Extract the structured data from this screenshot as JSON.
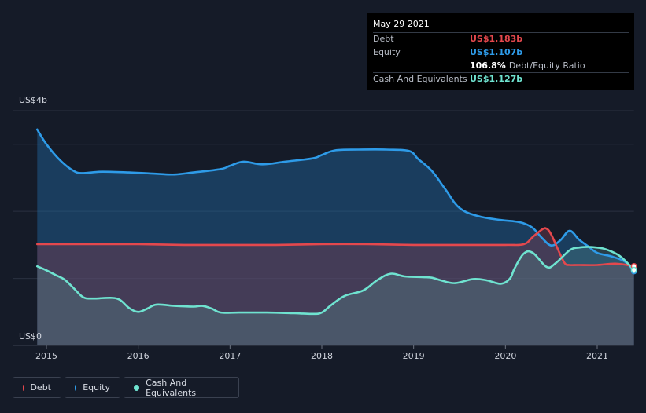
{
  "tooltip": {
    "date": "May 29 2021",
    "debt_label": "Debt",
    "debt_value": "US$1.183b",
    "equity_label": "Equity",
    "equity_value": "US$1.107b",
    "ratio_value": "106.8%",
    "ratio_label": "Debt/Equity Ratio",
    "cash_label": "Cash And Equivalents",
    "cash_value": "US$1.127b"
  },
  "legend": [
    {
      "label": "Debt",
      "color": "#e5484d"
    },
    {
      "label": "Equity",
      "color": "#2e9be8"
    },
    {
      "label": "Cash And Equivalents",
      "color": "#6fe3d0"
    }
  ],
  "chart_data": {
    "type": "area",
    "ylabel_top": "US$4b",
    "ylabel_bottom": "US$0",
    "ylim": [
      0,
      3.5
    ],
    "xlim": [
      2014.9,
      2021.4
    ],
    "x_ticks": [
      2015,
      2016,
      2017,
      2018,
      2019,
      2020,
      2021
    ],
    "x_tick_labels": [
      "2015",
      "2016",
      "2017",
      "2018",
      "2019",
      "2020",
      "2021"
    ],
    "y_gridlines": [
      1,
      2,
      3,
      3.5
    ],
    "series": [
      {
        "name": "Equity",
        "color": "#2e9be8",
        "x": [
          2014.9,
          2015.0,
          2015.15,
          2015.3,
          2015.4,
          2015.6,
          2015.9,
          2016.2,
          2016.4,
          2016.6,
          2016.9,
          2017.0,
          2017.15,
          2017.35,
          2017.6,
          2017.9,
          2018.0,
          2018.15,
          2018.4,
          2018.7,
          2018.95,
          2019.05,
          2019.2,
          2019.35,
          2019.5,
          2019.7,
          2019.95,
          2020.1,
          2020.2,
          2020.3,
          2020.4,
          2020.5,
          2020.6,
          2020.7,
          2020.8,
          2020.9,
          2021.0,
          2021.15,
          2021.3,
          2021.4
        ],
        "values": [
          3.22,
          3.0,
          2.76,
          2.6,
          2.57,
          2.59,
          2.58,
          2.56,
          2.55,
          2.58,
          2.63,
          2.68,
          2.74,
          2.7,
          2.74,
          2.79,
          2.84,
          2.91,
          2.92,
          2.92,
          2.9,
          2.78,
          2.6,
          2.32,
          2.05,
          1.93,
          1.87,
          1.85,
          1.82,
          1.75,
          1.6,
          1.49,
          1.57,
          1.71,
          1.58,
          1.48,
          1.38,
          1.33,
          1.25,
          1.107
        ]
      },
      {
        "name": "Debt",
        "color": "#e5484d",
        "x": [
          2014.9,
          2015.5,
          2016.0,
          2016.5,
          2017.0,
          2017.5,
          2018.0,
          2018.5,
          2019.0,
          2019.5,
          2020.0,
          2020.2,
          2020.3,
          2020.4,
          2020.45,
          2020.5,
          2020.6,
          2020.65,
          2020.7,
          2020.8,
          2021.0,
          2021.2,
          2021.4
        ],
        "values": [
          1.51,
          1.51,
          1.51,
          1.5,
          1.5,
          1.5,
          1.51,
          1.51,
          1.5,
          1.5,
          1.5,
          1.51,
          1.62,
          1.73,
          1.74,
          1.65,
          1.35,
          1.22,
          1.2,
          1.2,
          1.2,
          1.22,
          1.183
        ]
      },
      {
        "name": "Cash And Equivalents",
        "color": "#6fe3d0",
        "x": [
          2014.9,
          2015.0,
          2015.1,
          2015.2,
          2015.3,
          2015.4,
          2015.5,
          2015.7,
          2015.8,
          2015.9,
          2016.0,
          2016.1,
          2016.2,
          2016.4,
          2016.6,
          2016.7,
          2016.8,
          2016.9,
          2017.1,
          2017.4,
          2017.7,
          2017.9,
          2018.0,
          2018.1,
          2018.25,
          2018.45,
          2018.6,
          2018.75,
          2018.9,
          2019.1,
          2019.2,
          2019.3,
          2019.45,
          2019.65,
          2019.8,
          2019.95,
          2020.05,
          2020.1,
          2020.2,
          2020.3,
          2020.45,
          2020.55,
          2020.7,
          2020.8,
          2020.9,
          2021.0,
          2021.1,
          2021.25,
          2021.4
        ],
        "values": [
          1.18,
          1.12,
          1.05,
          0.98,
          0.85,
          0.72,
          0.7,
          0.71,
          0.68,
          0.56,
          0.5,
          0.55,
          0.61,
          0.59,
          0.58,
          0.59,
          0.55,
          0.49,
          0.49,
          0.49,
          0.48,
          0.47,
          0.49,
          0.6,
          0.74,
          0.82,
          0.97,
          1.07,
          1.03,
          1.02,
          1.01,
          0.97,
          0.93,
          0.99,
          0.97,
          0.92,
          1.0,
          1.15,
          1.37,
          1.38,
          1.17,
          1.23,
          1.42,
          1.46,
          1.47,
          1.46,
          1.43,
          1.33,
          1.127
        ]
      }
    ]
  }
}
